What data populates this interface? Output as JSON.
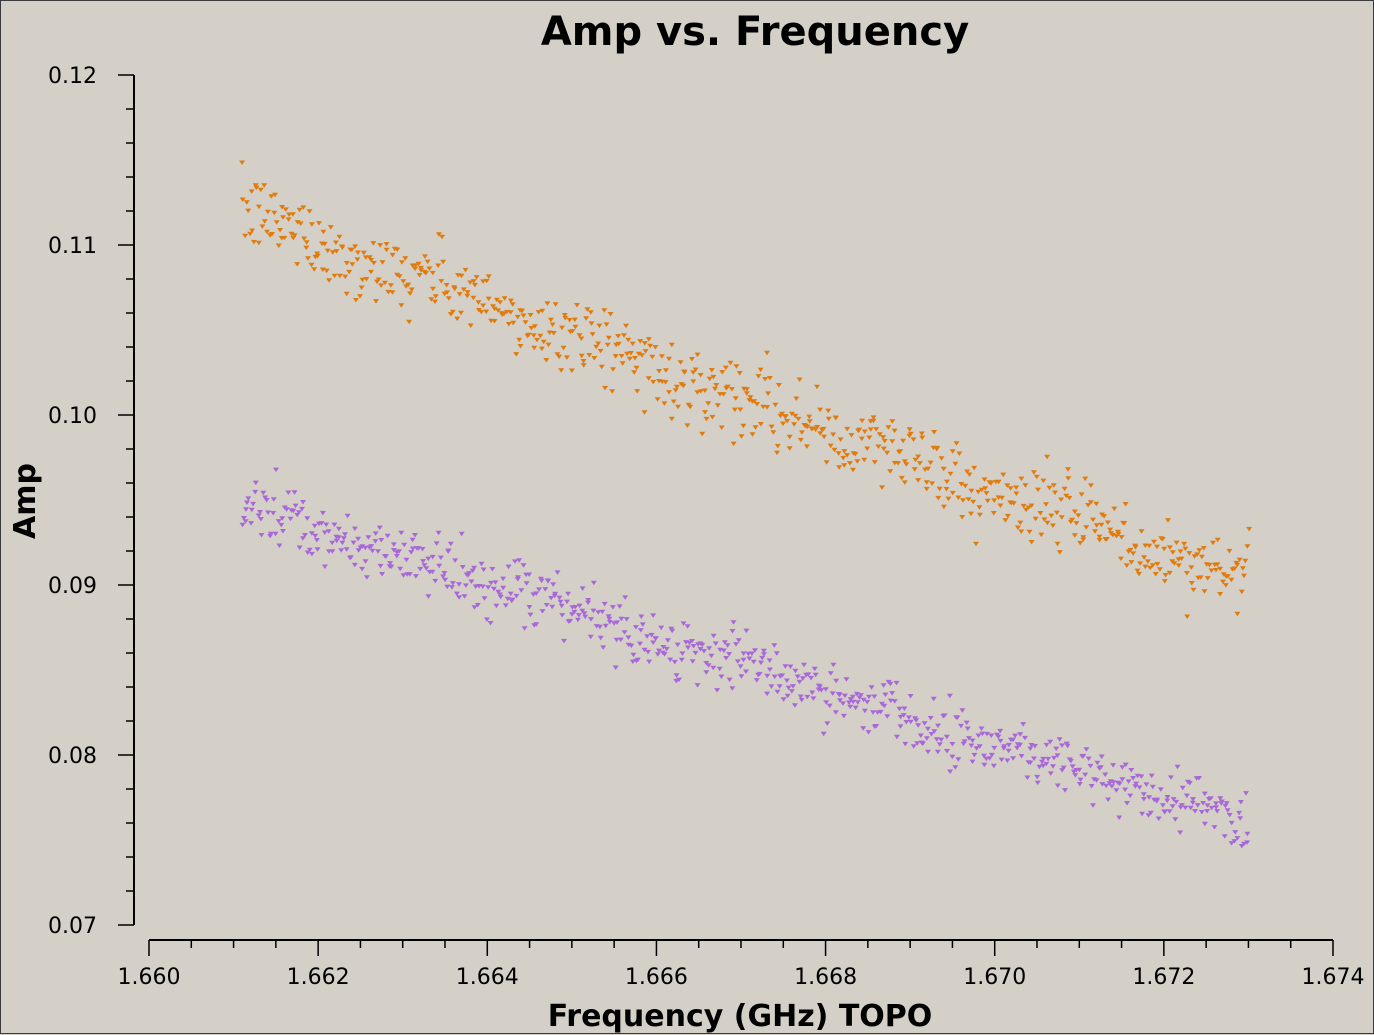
{
  "chart_data": {
    "type": "scatter",
    "title": "Amp vs. Frequency",
    "xlabel": "Frequency (GHz) TOPO",
    "ylabel": "Amp",
    "xlim": [
      1.66,
      1.674
    ],
    "ylim": [
      0.07,
      0.12
    ],
    "x_ticks": [
      "1.660",
      "1.662",
      "1.664",
      "1.666",
      "1.668",
      "1.670",
      "1.672",
      "1.674"
    ],
    "y_ticks": [
      "0.07",
      "0.08",
      "0.09",
      "0.10",
      "0.11",
      "0.12"
    ],
    "background": "#d4d0c8",
    "marker": "triangle-down",
    "grid": false,
    "series": [
      {
        "color": "#e07b0e",
        "x_range": [
          1.6611,
          1.673
        ],
        "trend_start": 0.1118,
        "trend_end": 0.09,
        "scatter": 0.0011,
        "n_points": 700
      },
      {
        "color": "#a868d8",
        "x_range": [
          1.6611,
          1.673
        ],
        "trend_start": 0.0945,
        "trend_end": 0.076,
        "scatter": 0.0009,
        "n_points": 700
      }
    ]
  }
}
